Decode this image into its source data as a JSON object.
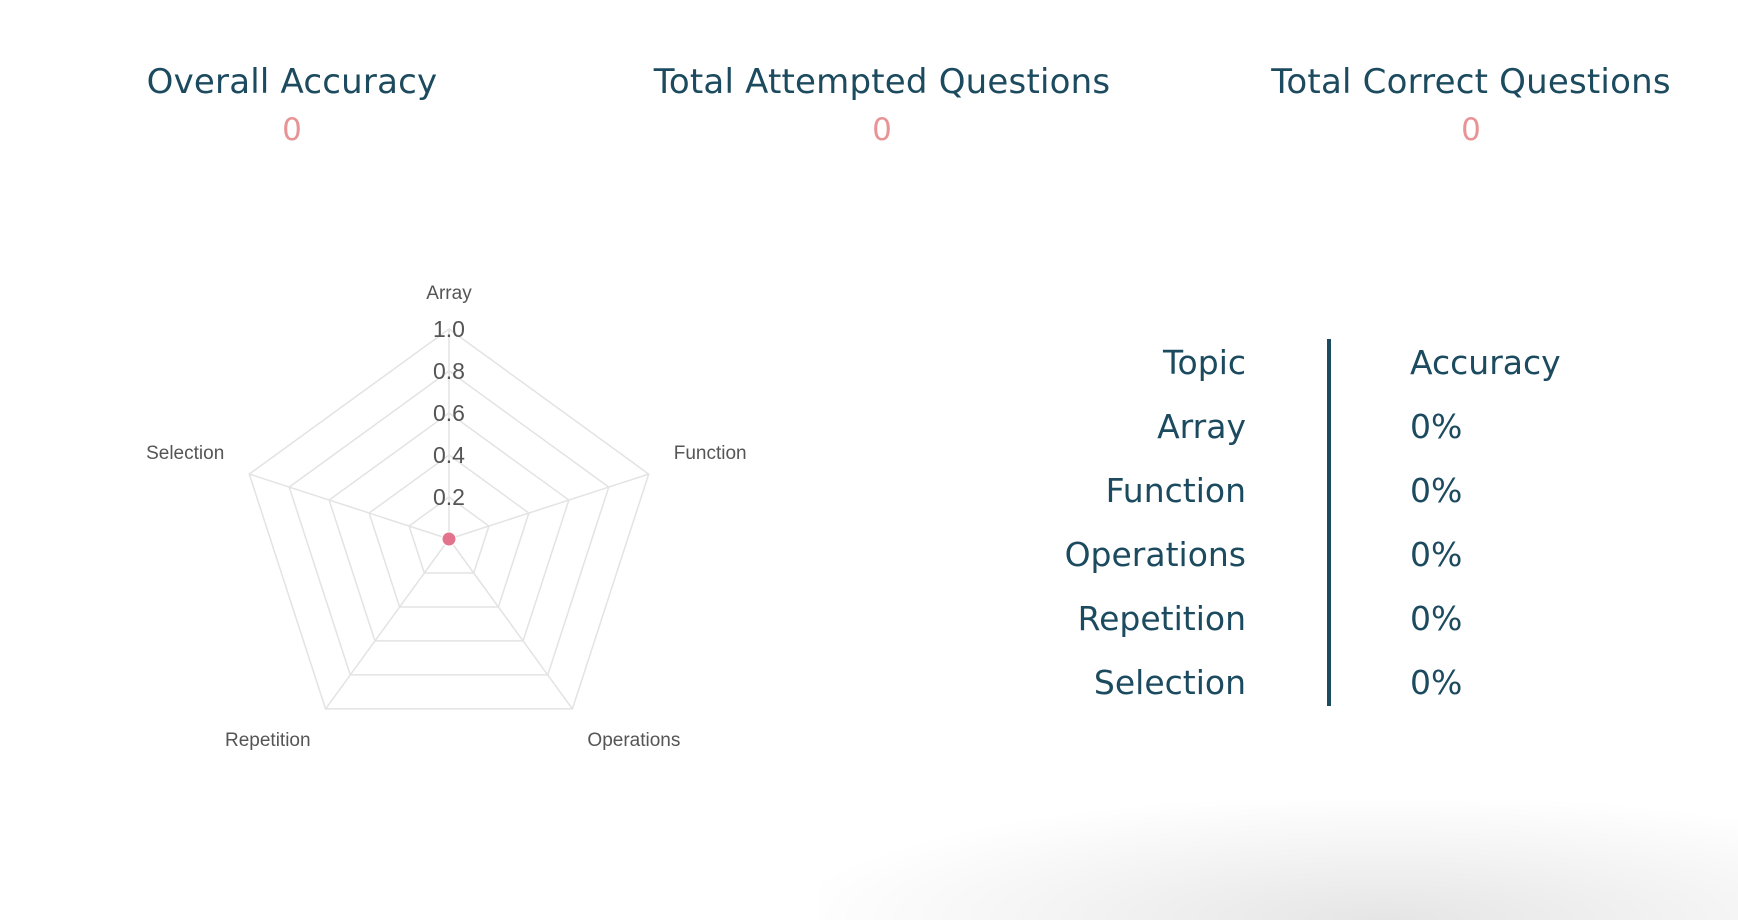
{
  "summary": {
    "overall_accuracy_label": "Overall Accuracy",
    "overall_accuracy_value": "0",
    "total_attempted_label": "Total Attempted Questions",
    "total_attempted_value": "0",
    "total_correct_label": "Total Correct Questions",
    "total_correct_value": "0"
  },
  "table": {
    "header_topic": "Topic",
    "header_accuracy": "Accuracy",
    "rows": [
      {
        "topic": "Array",
        "accuracy": "0%"
      },
      {
        "topic": "Function",
        "accuracy": "0%"
      },
      {
        "topic": "Operations",
        "accuracy": "0%"
      },
      {
        "topic": "Repetition",
        "accuracy": "0%"
      },
      {
        "topic": "Selection",
        "accuracy": "0%"
      }
    ]
  },
  "chart_data": {
    "type": "radar",
    "categories": [
      "Array",
      "Function",
      "Operations",
      "Repetition",
      "Selection"
    ],
    "series": [
      {
        "values": [
          0,
          0,
          0,
          0,
          0
        ],
        "color": "#e3738c"
      }
    ],
    "rlim": [
      0,
      1.0
    ],
    "ticks": [
      "0.2",
      "0.4",
      "0.6",
      "0.8",
      "1.0"
    ],
    "grid": true,
    "legend": "none"
  }
}
